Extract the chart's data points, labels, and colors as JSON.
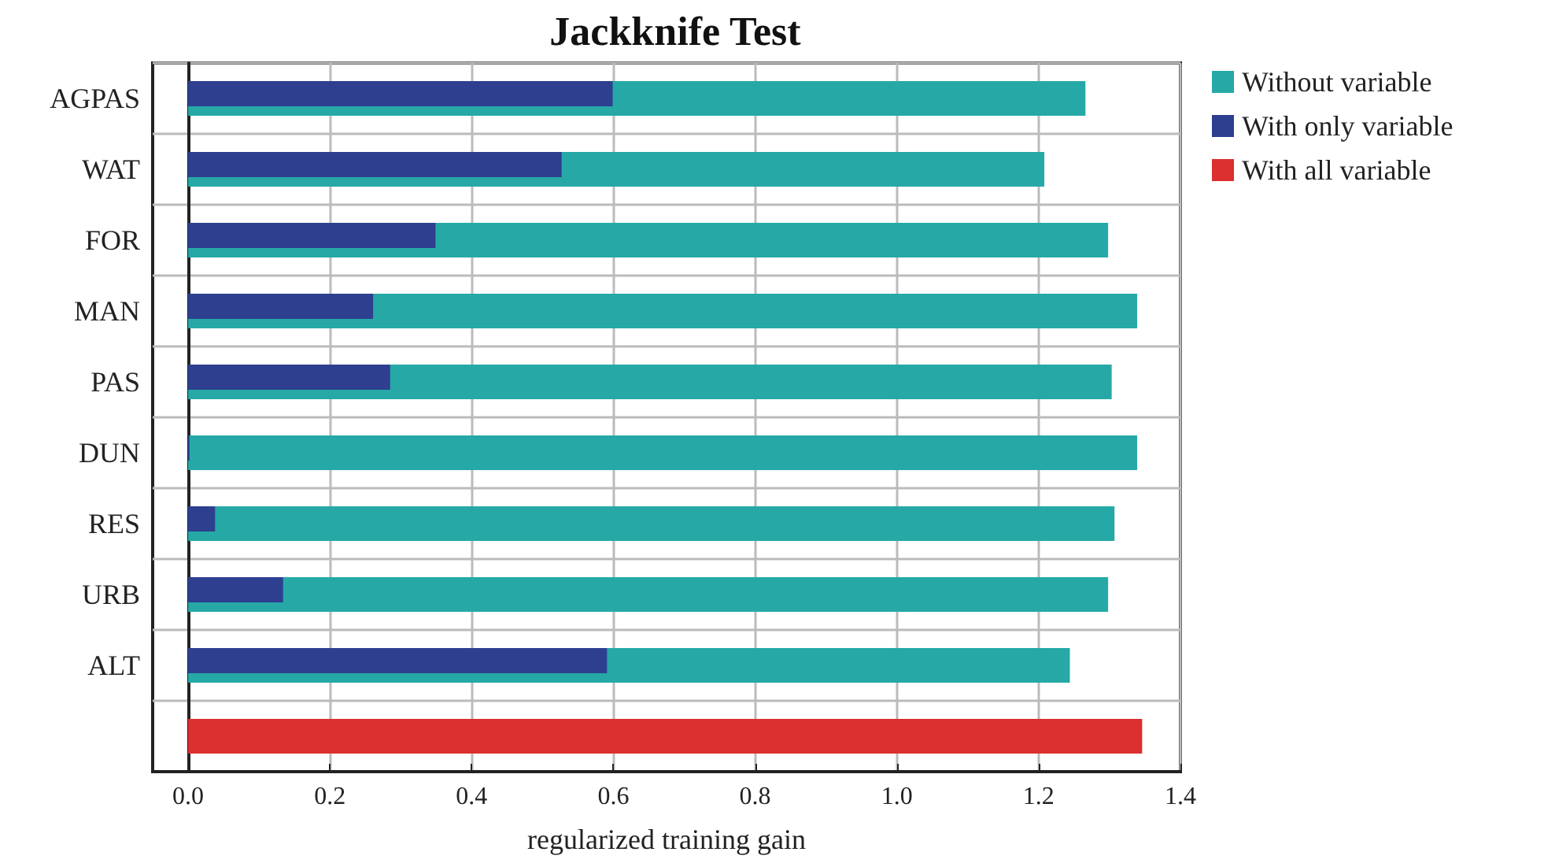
{
  "chart_data": {
    "type": "bar",
    "orientation": "horizontal",
    "title": "Jackknife Test",
    "xlabel": "regularized training gain",
    "categories": [
      "AGPAS",
      "WAT",
      "FOR",
      "MAN",
      "PAS",
      "DUN",
      "RES",
      "URB",
      "ALT",
      null
    ],
    "series": [
      {
        "name": "Without variable",
        "color": "#26a9a6",
        "values": [
          1.266,
          1.208,
          1.298,
          1.339,
          1.303,
          1.339,
          1.307,
          1.298,
          1.244,
          null
        ]
      },
      {
        "name": "With only variable",
        "color": "#2e3f8f",
        "values": [
          0.599,
          0.527,
          0.349,
          0.261,
          0.285,
          0.002,
          0.038,
          0.134,
          0.591,
          null
        ]
      },
      {
        "name": "With all variable",
        "color": "#dc2f2f",
        "values": [
          null,
          null,
          null,
          null,
          null,
          null,
          null,
          null,
          null,
          1.346
        ]
      }
    ],
    "xlim": [
      -0.05,
      1.4
    ],
    "xticks": [
      {
        "value": 0,
        "label": "0.0"
      },
      {
        "value": 0.2,
        "label": "0.2"
      },
      {
        "value": 0.4,
        "label": "0.4"
      },
      {
        "value": 0.6,
        "label": "0.6"
      },
      {
        "value": 0.8,
        "label": "0.8"
      },
      {
        "value": 1,
        "label": "1.0"
      },
      {
        "value": 1.2,
        "label": "1.2"
      },
      {
        "value": 1.4,
        "label": "1.4"
      }
    ],
    "grid": true,
    "legend": "right"
  }
}
